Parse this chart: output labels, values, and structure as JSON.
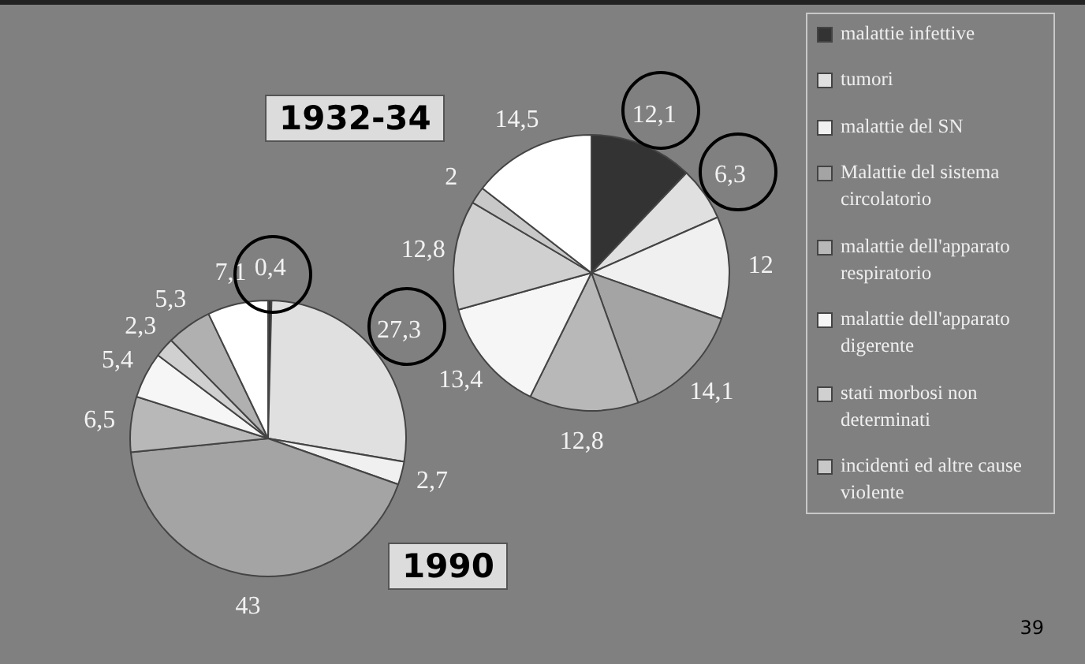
{
  "chart_data": [
    {
      "type": "pie",
      "title": "1932-34",
      "legend": "right",
      "categories": [
        "malattie infettive",
        "tumori",
        "malattie del SN",
        "Malattie del sistema circolatorio",
        "malattie dell'apparato respiratorio",
        "malattie dell'apparato digerente",
        "stati morbosi non determinati",
        "incidenti ed altre cause violente",
        null
      ],
      "values": [
        12.1,
        6.3,
        12,
        14.1,
        12.8,
        13.4,
        12.8,
        2,
        14.5
      ],
      "value_labels": [
        "12,1",
        "6,3",
        "12",
        "14,1",
        "12,8",
        "13,4",
        "12,8",
        "2",
        "14,5"
      ],
      "colors": [
        "#333333",
        "#e0e0e0",
        "#f0f0f0",
        "#a4a4a4",
        "#b8b8b8",
        "#f6f6f6",
        "#d0d0d0",
        "#c8c8c8",
        "#ffffff"
      ]
    },
    {
      "type": "pie",
      "title": "1990",
      "categories": [
        null,
        null,
        null,
        null,
        null,
        null,
        null,
        null,
        null
      ],
      "values": [
        0.4,
        27.3,
        2.7,
        43,
        6.5,
        5.4,
        2.3,
        5.3,
        7.1
      ],
      "value_labels": [
        "0,4",
        "27,3",
        "2,7",
        "43",
        "6,5",
        "5,4",
        "2,3",
        "5,3",
        "7,1"
      ],
      "colors": [
        "#333333",
        "#e0e0e0",
        "#f0f0f0",
        "#a4a4a4",
        "#b8b8b8",
        "#f6f6f6",
        "#d0d0d0",
        "#b0b0b0",
        "#ffffff"
      ],
      "annotations": [
        "39"
      ]
    }
  ]
}
